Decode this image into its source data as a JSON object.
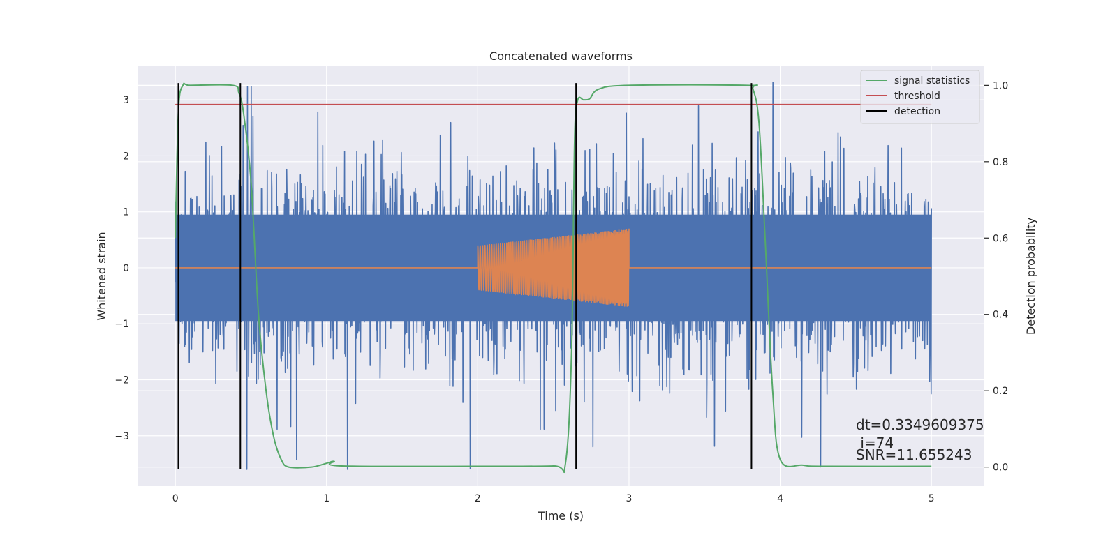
{
  "chart_data": {
    "type": "line",
    "title": "Concatenated waveforms",
    "xlabel": "Time (s)",
    "ylabel_left": "Whitened strain",
    "ylabel_right": "Detection probability",
    "xlim": [
      -0.25,
      5.35
    ],
    "ylim_left": [
      -3.9,
      3.6
    ],
    "ylim_right": [
      -0.05,
      1.05
    ],
    "x_ticks": [
      0,
      1,
      2,
      3,
      4,
      5
    ],
    "y_left_ticks": [
      -3,
      -2,
      -1,
      0,
      1,
      2,
      3
    ],
    "y_right_ticks": [
      0.0,
      0.2,
      0.4,
      0.6,
      0.8,
      1.0
    ],
    "y_right_tick_labels": [
      "0.0",
      "0.2",
      "0.4",
      "0.6",
      "0.8",
      "1.0"
    ],
    "grid": true,
    "legend_position": "top-right",
    "series": [
      {
        "name": "",
        "axis": "left",
        "kind": "noise",
        "color": "#4c72b0",
        "x_range": [
          0,
          5
        ],
        "amplitude_typical": 1.3,
        "amplitude_max": 3.6
      },
      {
        "name": "",
        "axis": "left",
        "kind": "chirp",
        "color": "#dd8452",
        "x": [
          0,
          2.0,
          2.0,
          3.0,
          3.0,
          5.0
        ],
        "envelope": [
          0,
          0,
          0.4,
          0.7,
          0,
          0
        ]
      },
      {
        "name": "signal statistics",
        "axis": "right",
        "color": "#55a868",
        "x": [
          0,
          0.02,
          0.05,
          0.1,
          0.38,
          0.42,
          0.45,
          0.5,
          0.55,
          0.6,
          0.65,
          0.7,
          0.75,
          0.9,
          1.0,
          1.05,
          1.1,
          2.0,
          2.5,
          2.58,
          2.62,
          2.64,
          2.66,
          2.7,
          2.74,
          2.8,
          3.0,
          3.78,
          3.82,
          3.86,
          3.9,
          3.95,
          4.0,
          4.15,
          4.3,
          5.0
        ],
        "values": [
          0.6,
          0.93,
          1.0,
          1.0,
          1.0,
          0.98,
          0.93,
          0.75,
          0.4,
          0.2,
          0.08,
          0.02,
          0.0,
          0.0,
          0.01,
          0.015,
          0.003,
          0.002,
          0.003,
          0.01,
          0.3,
          0.85,
          0.96,
          0.962,
          0.965,
          0.99,
          1.0,
          1.0,
          0.99,
          0.9,
          0.6,
          0.2,
          0.02,
          0.005,
          0.002,
          0.002
        ]
      },
      {
        "name": "threshold",
        "axis": "right",
        "color": "#c44e52",
        "x": [
          0,
          5.0
        ],
        "values": [
          0.95,
          0.95
        ]
      },
      {
        "name": "detection",
        "axis": "left",
        "color": "#000000",
        "vlines_x": [
          0.02,
          0.43,
          2.65,
          3.81
        ],
        "ymin": -3.6,
        "ymax": 3.3
      }
    ],
    "annotation": {
      "lines": [
        "dt=0.3349609375",
        " i=74",
        "SNR=11.655243"
      ],
      "position": "bottom-right"
    },
    "colors": {
      "plot_background": "#eaeaf2",
      "grid": "#ffffff",
      "text": "#262626"
    }
  }
}
